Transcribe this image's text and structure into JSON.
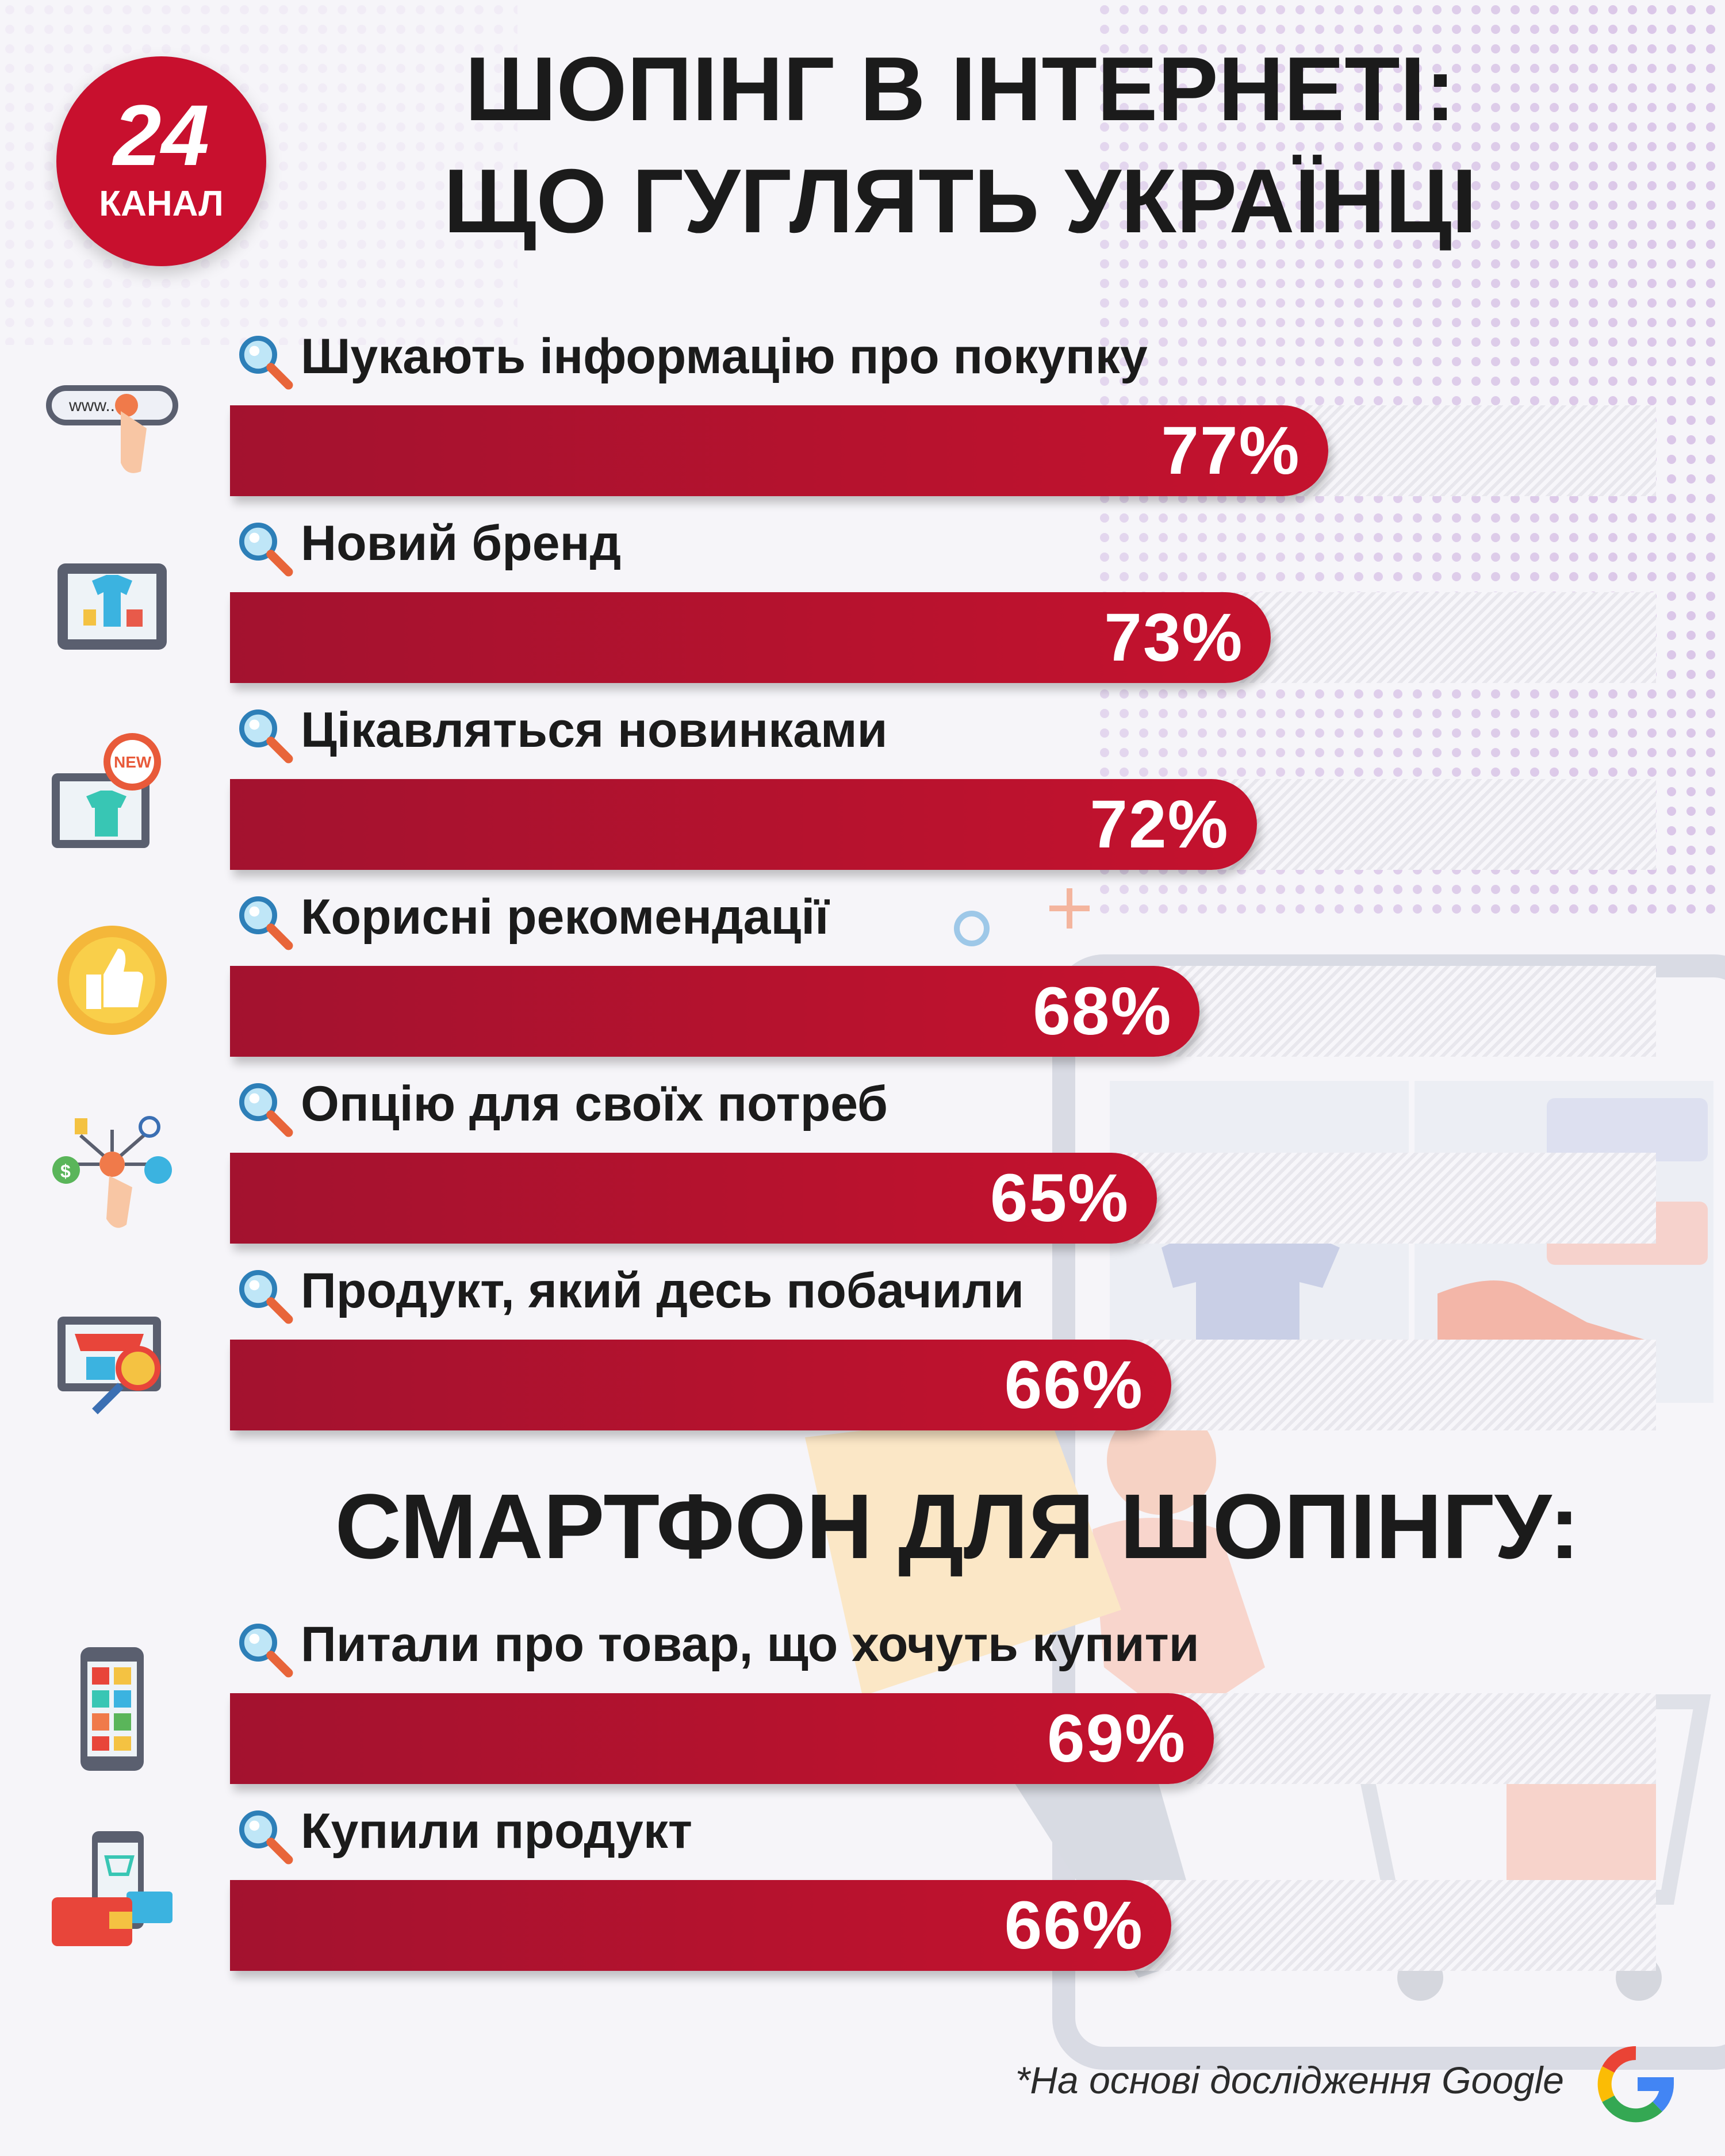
{
  "logo": {
    "number": "24",
    "text": "КАНАЛ"
  },
  "title_line1": "ШОПІНГ В ІНТЕРНЕТІ:",
  "title_line2": "ЩО ГУГЛЯТЬ УКРАЇНЦІ",
  "section2_title": "СМАРТФОН ДЛЯ ШОПІНГУ:",
  "footnote": "*На основі дослідження Google",
  "colors": {
    "bar": "#c4122e",
    "bar_dark": "#a3122f",
    "logo": "#c8102e",
    "text": "#1b1b1b"
  },
  "chart_data": [
    {
      "type": "bar",
      "orientation": "horizontal",
      "title": "ШОПІНГ В ІНТЕРНЕТІ: ЩО ГУГЛЯТЬ УКРАЇНЦІ",
      "unit": "%",
      "xlim": [
        0,
        100
      ],
      "categories": [
        "Шукають інформацію про покупку",
        "Новий бренд",
        "Цікавляться новинками",
        "Корисні рекомендації",
        "Опцію для своїх потреб",
        "Продукт, який десь побачили"
      ],
      "values": [
        77,
        73,
        72,
        68,
        65,
        66
      ],
      "labels": [
        "77%",
        "73%",
        "72%",
        "68%",
        "65%",
        "66%"
      ],
      "icons": [
        "web-search-icon",
        "online-store-icon",
        "new-product-icon",
        "thumbs-up-badge-icon",
        "options-choice-icon",
        "online-shop-magnifier-icon"
      ]
    },
    {
      "type": "bar",
      "orientation": "horizontal",
      "title": "СМАРТФОН ДЛЯ ШОПІНГУ:",
      "unit": "%",
      "xlim": [
        0,
        100
      ],
      "categories": [
        "Питали про товар, що хочуть купити",
        "Купили продукт"
      ],
      "values": [
        69,
        66
      ],
      "labels": [
        "69%",
        "66%"
      ],
      "icons": [
        "smartphone-apps-icon",
        "mobile-payment-wallet-icon"
      ]
    }
  ]
}
